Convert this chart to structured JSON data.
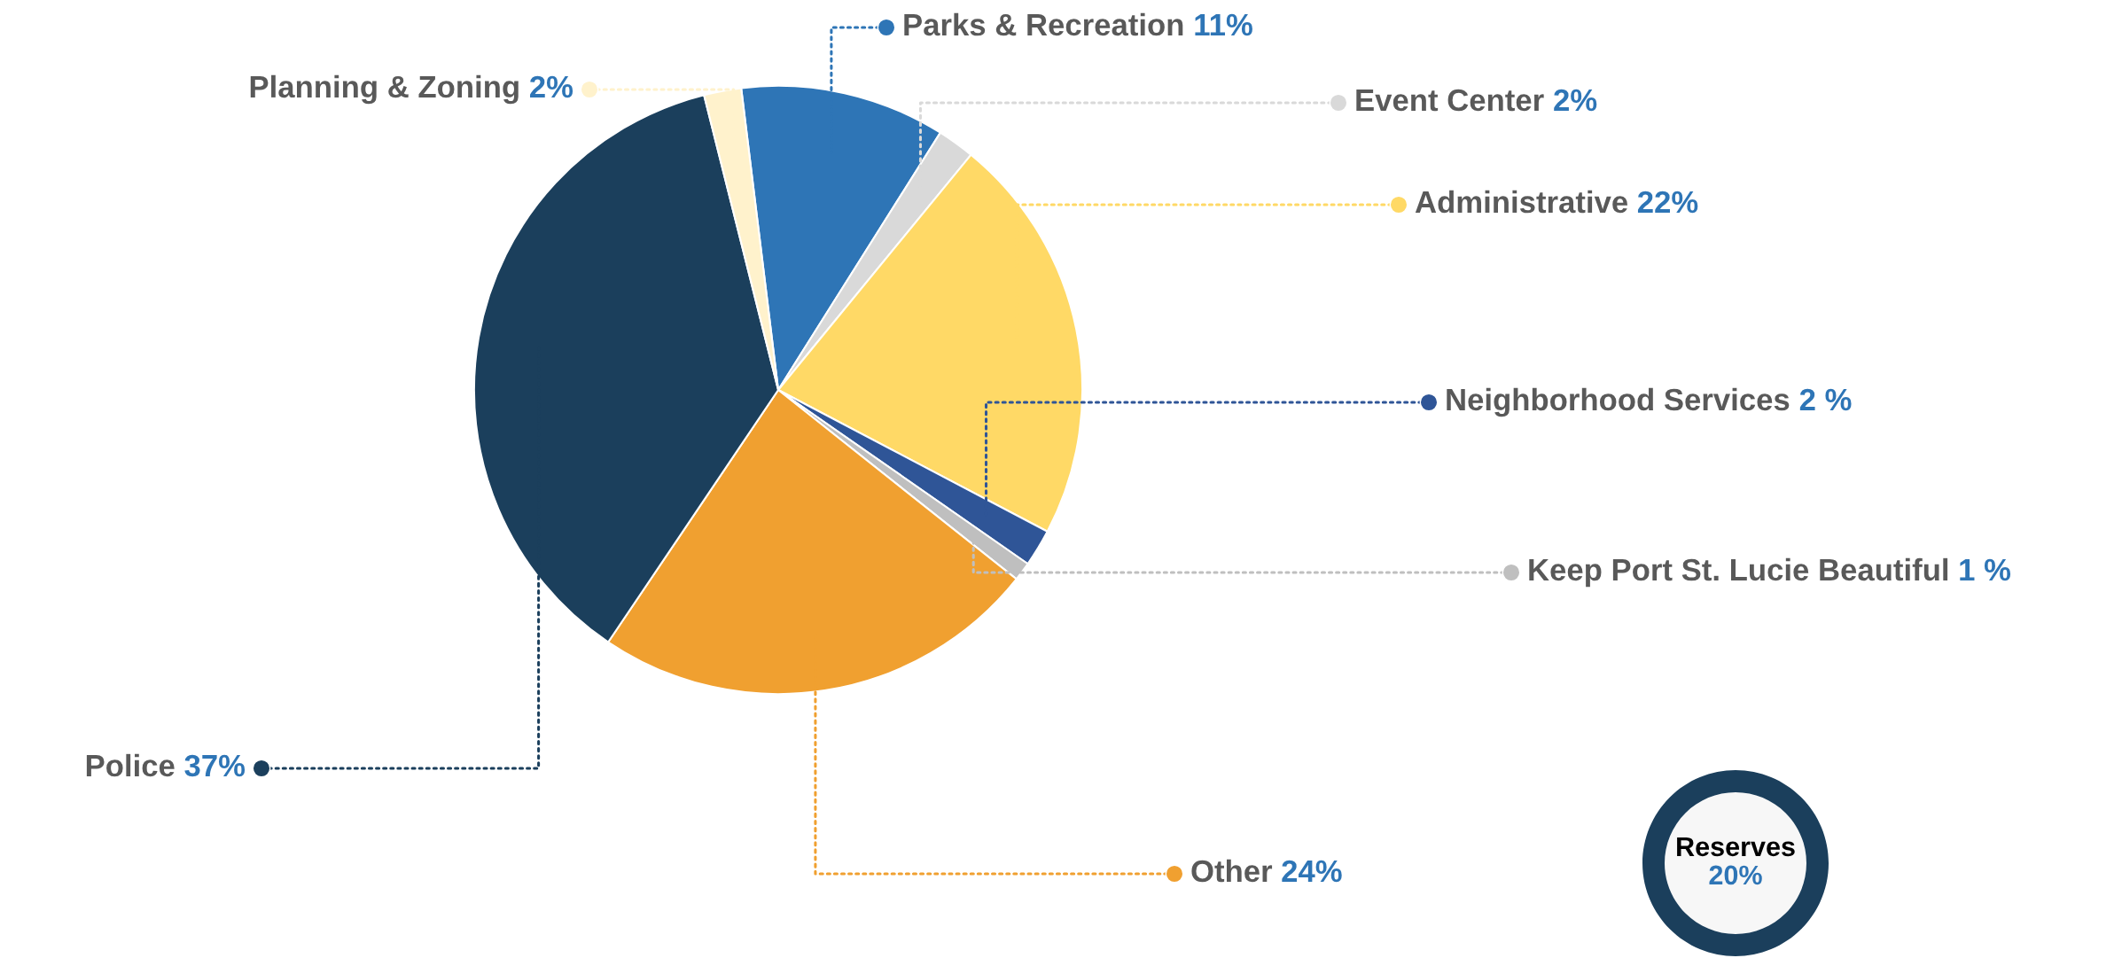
{
  "chart_data": {
    "type": "pie",
    "categories": [
      "Parks & Recreation",
      "Event Center",
      "Administrative",
      "Neighborhood Services",
      "Keep Port St. Lucie Beautiful",
      "Other",
      "Police",
      "Planning & Zoning"
    ],
    "values": [
      11,
      2,
      22,
      2,
      1,
      24,
      37,
      2
    ],
    "value_labels": [
      "11%",
      "2%",
      "22%",
      "2 %",
      "1 %",
      "24%",
      "37%",
      "2%"
    ],
    "colors": [
      "#2e75b6",
      "#d9d9d9",
      "#ffd966",
      "#2f5597",
      "#bfbfbf",
      "#f0a030",
      "#1b3f5c",
      "#fff2cc"
    ],
    "legend": "right",
    "annotations": [
      "Reserves\n20%"
    ]
  }
}
